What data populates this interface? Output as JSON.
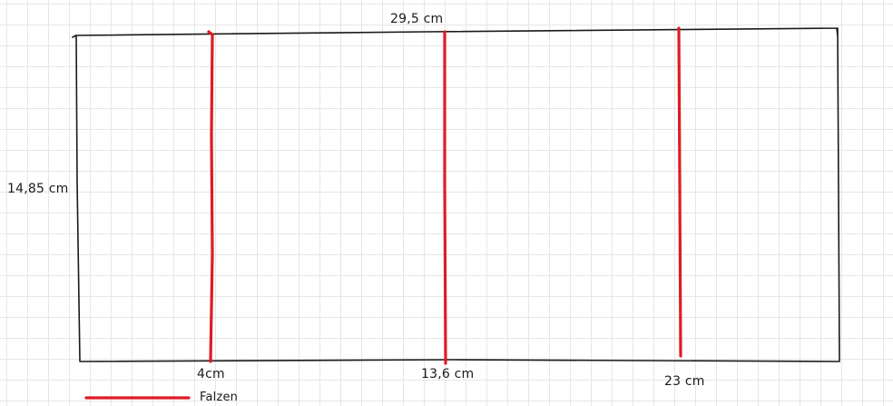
{
  "sheet": {
    "width_label": "29,5 cm",
    "height_label": "14,85 cm"
  },
  "folds": [
    {
      "position_label": "4cm"
    },
    {
      "position_label": "13,6 cm"
    },
    {
      "position_label": "23 cm"
    }
  ],
  "legend": {
    "label": "Falzen"
  },
  "colors": {
    "fold_line": "#e01b24",
    "outline": "#1a1a1a",
    "grid": "#e6e6e6"
  }
}
